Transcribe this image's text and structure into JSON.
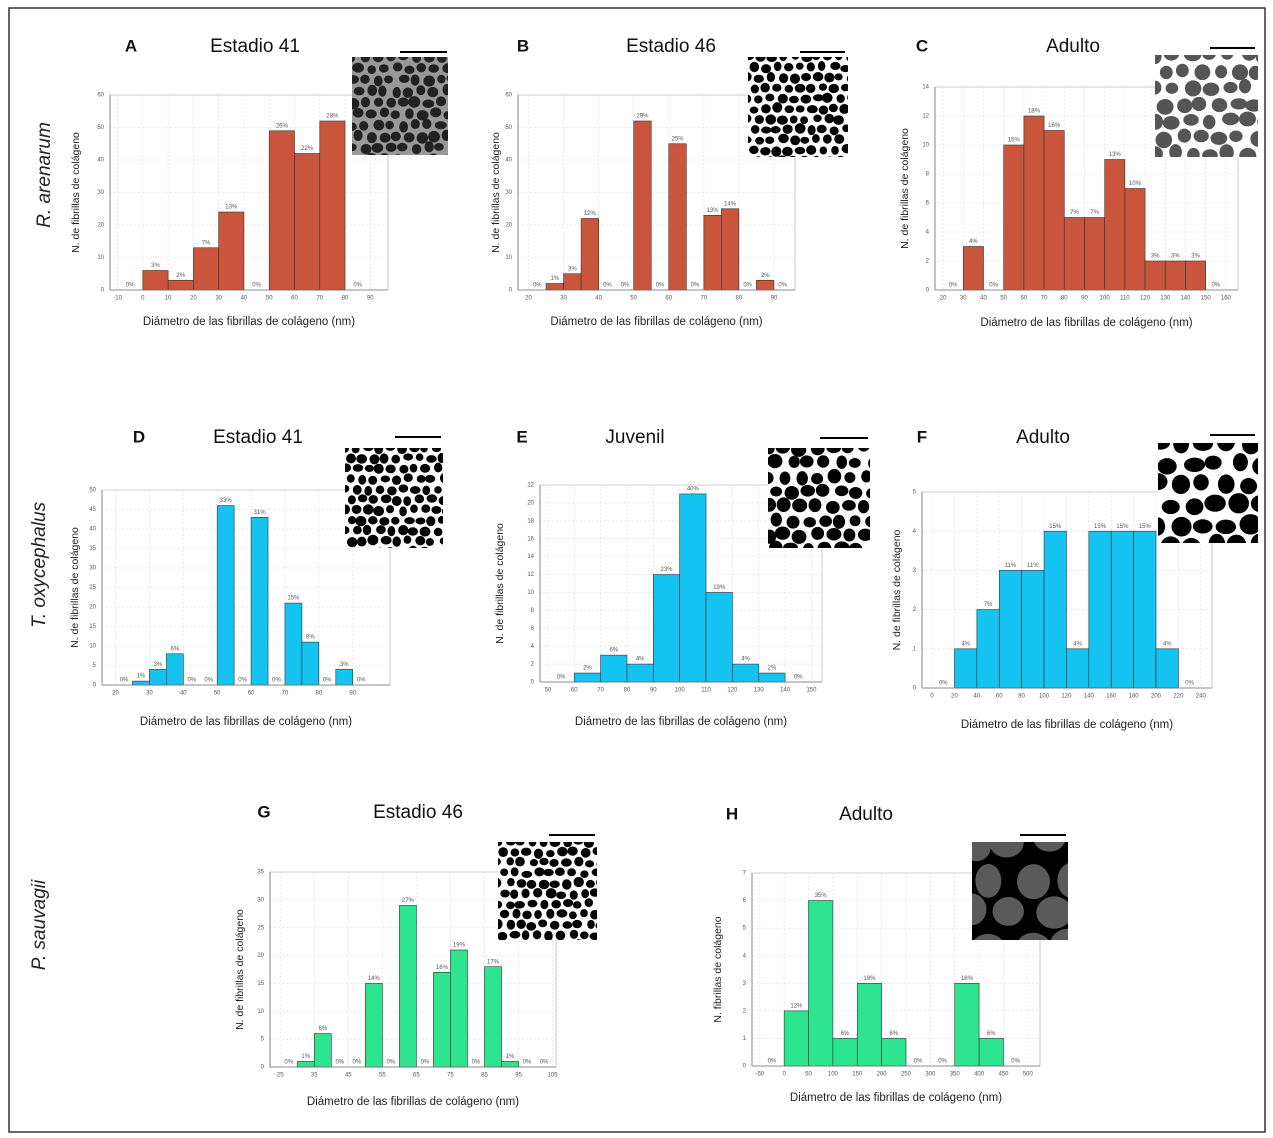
{
  "row_labels": [
    "R. arenarum",
    "T. oxycephalus",
    "P. sauvagii"
  ],
  "chart_data": [
    {
      "type": "histogram",
      "panel": "A",
      "title": "Estadio 41",
      "y_label": "N. de fibrillas de colágeno",
      "x_label": "Diámetro de las fibrillas de colágeno (nm)",
      "color": "#c9553c",
      "bins": [
        -10,
        0,
        10,
        20,
        30,
        40,
        50,
        60,
        70,
        80,
        90
      ],
      "values": [
        0,
        6,
        3,
        13,
        24,
        0,
        49,
        42,
        52,
        0
      ],
      "bar_labels": [
        "0%",
        "3%",
        "2%",
        "7%",
        "13%",
        "0%",
        "26%",
        "22%",
        "28%",
        "0%"
      ],
      "xlim": [
        -13,
        97
      ],
      "xticks": [
        -10,
        0,
        10,
        20,
        30,
        40,
        50,
        60,
        70,
        80,
        90
      ],
      "ylim": [
        0,
        60
      ],
      "yticks": [
        0,
        10,
        20,
        30,
        40,
        50,
        60
      ],
      "grid": true
    },
    {
      "type": "histogram",
      "panel": "B",
      "title": "Estadio 46",
      "y_label": "N. de fibrillas de colágeno",
      "x_label": "Diámetro de las fibrillas de colágeno (nm)",
      "color": "#c9553c",
      "bins": [
        20,
        25,
        30,
        35,
        40,
        45,
        50,
        55,
        60,
        65,
        70,
        75,
        80,
        85,
        90,
        95
      ],
      "values": [
        0,
        2,
        5,
        22,
        0,
        0,
        52,
        0,
        45,
        0,
        23,
        25,
        0,
        3,
        0
      ],
      "bar_labels": [
        "0%",
        "1%",
        "3%",
        "12%",
        "0%",
        "0%",
        "29%",
        "0%",
        "25%",
        "0%",
        "13%",
        "14%",
        "0%",
        "2%",
        "0%"
      ],
      "xlim": [
        17,
        96
      ],
      "xticks": [
        20,
        30,
        40,
        50,
        60,
        70,
        80,
        90
      ],
      "ylim": [
        0,
        60
      ],
      "yticks": [
        0,
        10,
        20,
        30,
        40,
        50,
        60
      ],
      "grid": true
    },
    {
      "type": "histogram",
      "panel": "C",
      "title": "Adulto",
      "y_label": "N. de fibrillas de colágeno",
      "x_label": "Diámetro de las fibrillas de colágeno (nm)",
      "color": "#c9553c",
      "bins": [
        20,
        30,
        40,
        50,
        60,
        70,
        80,
        90,
        100,
        110,
        120,
        130,
        140,
        150,
        160
      ],
      "values": [
        0,
        3,
        0,
        10,
        12,
        11,
        5,
        5,
        9,
        7,
        2,
        2,
        2,
        0
      ],
      "bar_labels": [
        "0%",
        "4%",
        "0%",
        "15%",
        "18%",
        "16%",
        "7%",
        "7%",
        "13%",
        "10%",
        "3%",
        "3%",
        "3%",
        "0%"
      ],
      "xlim": [
        16,
        166
      ],
      "xticks": [
        20,
        30,
        40,
        50,
        60,
        70,
        80,
        90,
        100,
        110,
        120,
        130,
        140,
        150,
        160
      ],
      "ylim": [
        0,
        14
      ],
      "yticks": [
        0,
        2,
        4,
        6,
        8,
        10,
        12,
        14
      ],
      "grid": true
    },
    {
      "type": "histogram",
      "panel": "D",
      "title": "Estadio 41",
      "y_label": "N. de fibrillas de colágeno",
      "x_label": "Diámetro de las fibrillas de colágeno (nm)",
      "color": "#14c3f0",
      "bins": [
        20,
        25,
        30,
        35,
        40,
        45,
        50,
        55,
        60,
        65,
        70,
        75,
        80,
        85,
        90,
        95
      ],
      "values": [
        0,
        1,
        4,
        8,
        0,
        0,
        46,
        0,
        43,
        0,
        21,
        11,
        0,
        4,
        0
      ],
      "bar_labels": [
        "0%",
        "1%",
        "3%",
        "6%",
        "0%",
        "0%",
        "33%",
        "0%",
        "31%",
        "0%",
        "15%",
        "8%",
        "0%",
        "3%",
        "0%"
      ],
      "xlim": [
        16,
        101
      ],
      "xticks": [
        20,
        30,
        40,
        50,
        60,
        70,
        80,
        90
      ],
      "ylim": [
        0,
        50
      ],
      "yticks": [
        0,
        5,
        10,
        15,
        20,
        25,
        30,
        35,
        40,
        45,
        50
      ],
      "grid": true
    },
    {
      "type": "histogram",
      "panel": "E",
      "title": "Juvenil",
      "y_label": "N. de fibrillas de colágeno",
      "x_label": "Diámetro de las fibrillas de colágeno (nm)",
      "color": "#14c3f0",
      "bins": [
        50,
        60,
        70,
        80,
        90,
        100,
        110,
        120,
        130,
        140,
        150
      ],
      "values": [
        0,
        1,
        3,
        2,
        12,
        21,
        10,
        2,
        1,
        0
      ],
      "bar_labels": [
        "0%",
        "2%",
        "6%",
        "4%",
        "23%",
        "40%",
        "19%",
        "4%",
        "2%",
        "0%"
      ],
      "xlim": [
        47,
        154
      ],
      "xticks": [
        50,
        60,
        70,
        80,
        90,
        100,
        110,
        120,
        130,
        140,
        150
      ],
      "ylim": [
        0,
        22
      ],
      "yticks": [
        0,
        2,
        4,
        6,
        8,
        10,
        12,
        14,
        16,
        18,
        20,
        22
      ],
      "grid": true
    },
    {
      "type": "histogram",
      "panel": "F",
      "title": "Adulto",
      "y_label": "N. de fibrillas de colágeno",
      "x_label": "Diámetro de las fibrillas de colágeno (nm)",
      "color": "#14c3f0",
      "bins": [
        0,
        20,
        40,
        60,
        80,
        100,
        120,
        140,
        160,
        180,
        200,
        220,
        240
      ],
      "values": [
        0,
        1,
        2,
        3,
        3,
        4,
        1,
        4,
        4,
        4,
        1,
        0
      ],
      "bar_labels": [
        "0%",
        "4%",
        "7%",
        "11%",
        "11%",
        "15%",
        "4%",
        "15%",
        "15%",
        "15%",
        "4%",
        "0%"
      ],
      "xlim": [
        -9,
        250
      ],
      "xticks": [
        0,
        20,
        40,
        60,
        80,
        100,
        120,
        140,
        160,
        180,
        200,
        220,
        240
      ],
      "ylim": [
        0,
        5
      ],
      "yticks": [
        0,
        1,
        2,
        3,
        4,
        5
      ],
      "grid": true
    },
    {
      "type": "histogram",
      "panel": "G",
      "title": "Estadio 46",
      "y_label": "N. de fibrillas de colágeno",
      "x_label": "Diámetro de las fibrillas de colágeno (nm)",
      "color": "#2ee58f",
      "bins": [
        25,
        30,
        35,
        40,
        45,
        50,
        55,
        60,
        65,
        70,
        75,
        80,
        85,
        90,
        95,
        100,
        105
      ],
      "values": [
        0,
        1,
        6,
        0,
        0,
        15,
        0,
        29,
        0,
        17,
        21,
        0,
        18,
        1,
        0,
        0
      ],
      "bar_labels": [
        "0%",
        "1%",
        "6%",
        "0%",
        "0%",
        "14%",
        "0%",
        "27%",
        "0%",
        "16%",
        "19%",
        "0%",
        "17%",
        "1%",
        "0%",
        "0%"
      ],
      "xlim": [
        22,
        106
      ],
      "xticks": [
        25,
        35,
        45,
        55,
        65,
        75,
        85,
        95,
        105
      ],
      "ylim": [
        0,
        35
      ],
      "yticks": [
        0,
        5,
        10,
        15,
        20,
        25,
        30,
        35
      ],
      "grid": true
    },
    {
      "type": "histogram",
      "panel": "H",
      "title": "Adulto",
      "y_label": "N. fibrillas de colágeno",
      "x_label": "Diámetro de las fibrillas de colágeno (nm)",
      "color": "#2ee58f",
      "bins": [
        -50,
        0,
        50,
        100,
        150,
        200,
        250,
        300,
        350,
        400,
        450,
        500
      ],
      "values": [
        0,
        2,
        6,
        1,
        3,
        1,
        0,
        0,
        3,
        1,
        0
      ],
      "bar_labels": [
        "0%",
        "12%",
        "35%",
        "6%",
        "18%",
        "6%",
        "0%",
        "0%",
        "18%",
        "6%",
        "0%"
      ],
      "xlim": [
        -66,
        525
      ],
      "xticks": [
        -50,
        0,
        50,
        100,
        150,
        200,
        250,
        300,
        350,
        400,
        450,
        500
      ],
      "ylim": [
        0,
        7
      ],
      "yticks": [
        0,
        1,
        2,
        3,
        4,
        5,
        6,
        7
      ],
      "grid": true
    }
  ]
}
